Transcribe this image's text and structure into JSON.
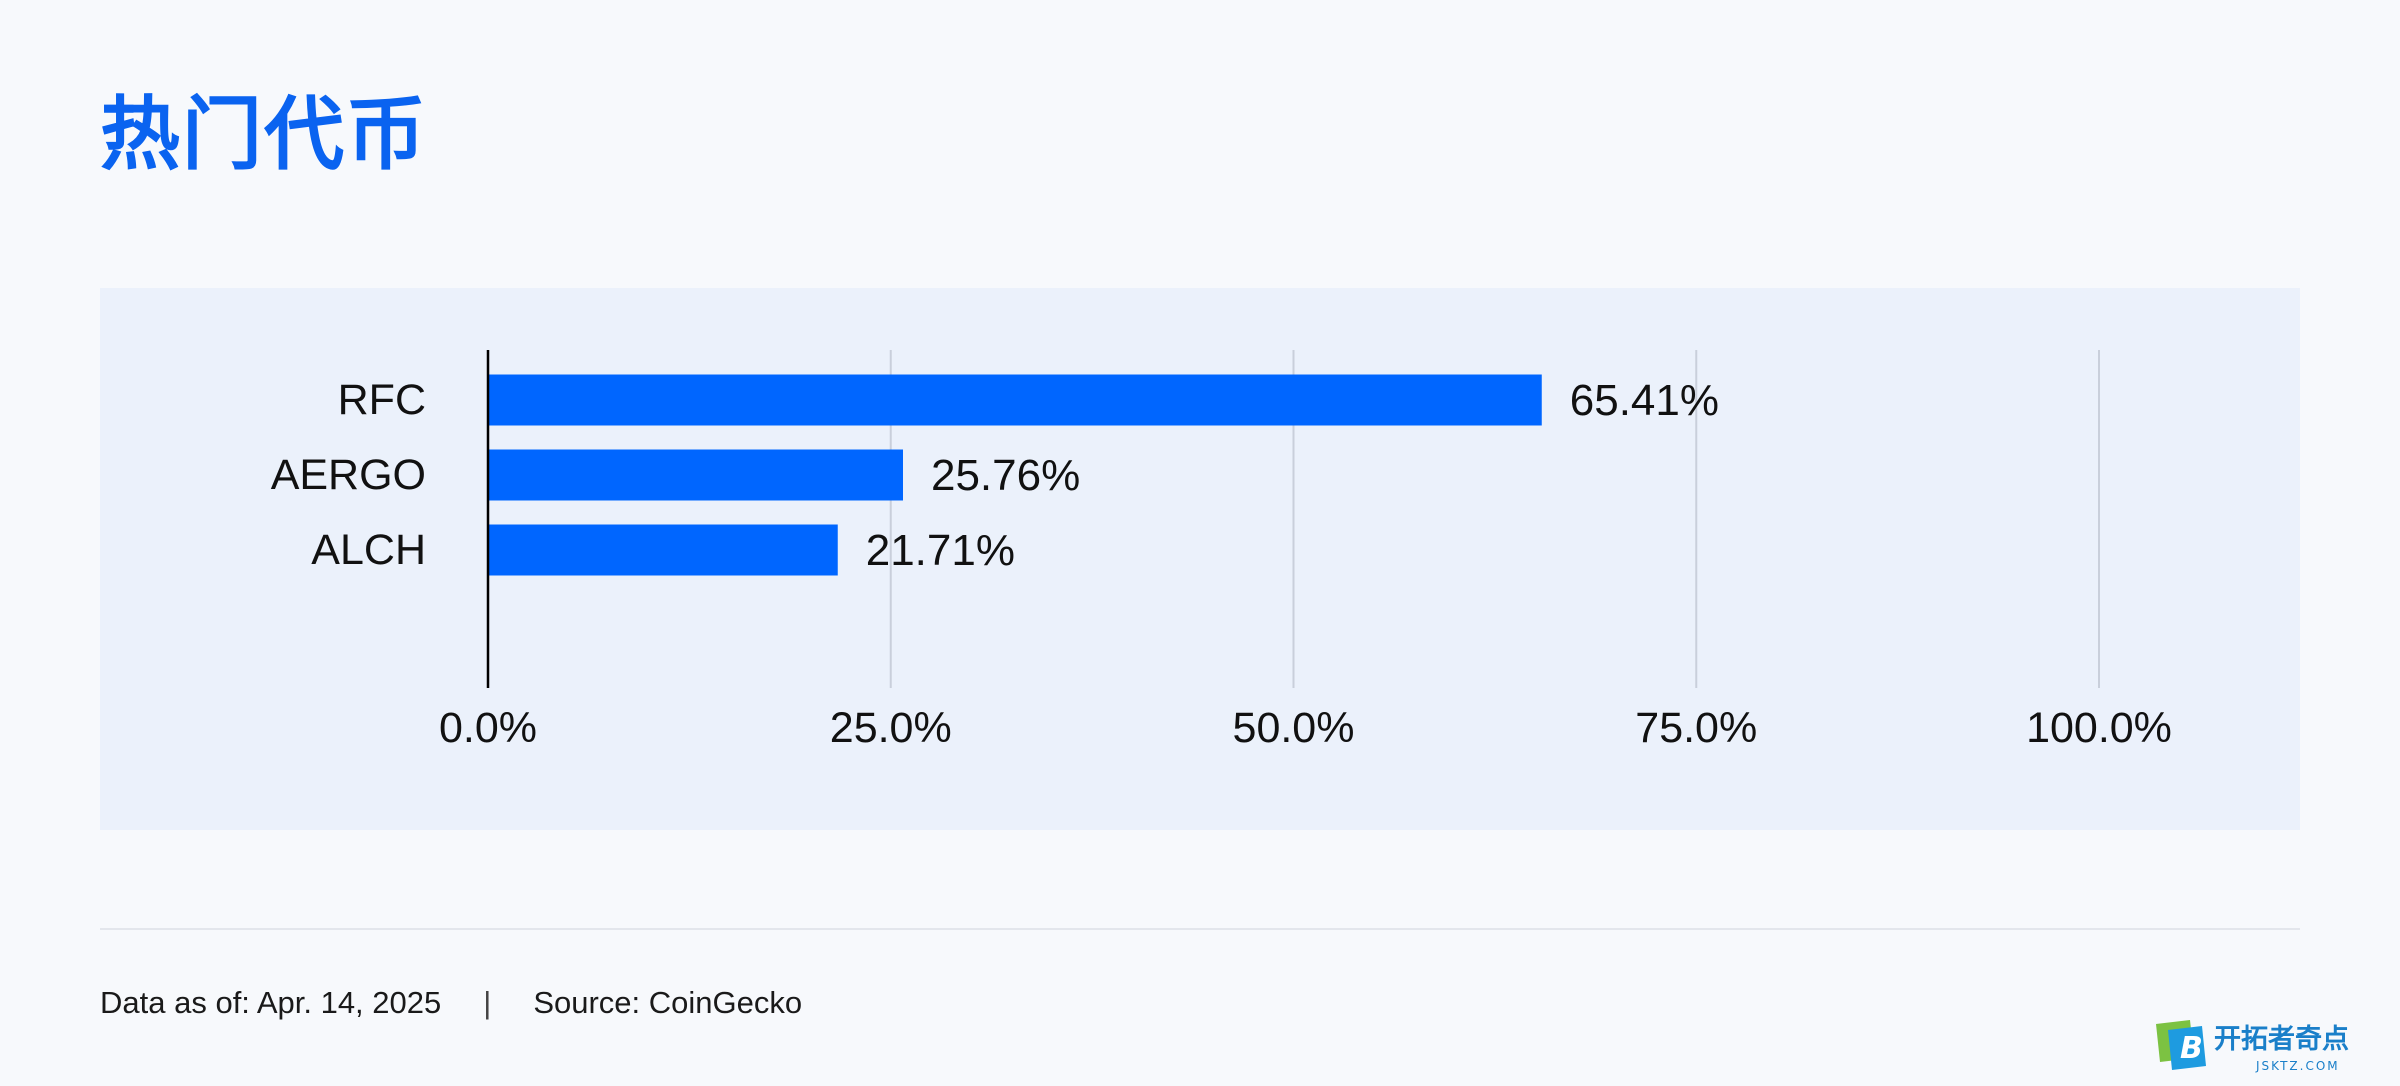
{
  "title": "热门代币",
  "chart_data": {
    "type": "bar",
    "orientation": "horizontal",
    "categories": [
      "RFC",
      "AERGO",
      "ALCH"
    ],
    "values": [
      65.41,
      25.76,
      21.71
    ],
    "value_labels": [
      "65.41%",
      "25.76%",
      "21.71%"
    ],
    "xlim": [
      0,
      100
    ],
    "x_ticks": [
      0,
      25,
      50,
      75,
      100
    ],
    "x_tick_labels": [
      "0.0%",
      "25.0%",
      "50.0%",
      "75.0%",
      "100.0%"
    ],
    "grid": "vertical",
    "colors": {
      "bar": "#0066ff",
      "grid": "#c9cfdb",
      "axis": "#000000"
    }
  },
  "footer": {
    "date_text": "Data as of: Apr. 14, 2025",
    "separator": "|",
    "source_text": "Source: CoinGecko"
  },
  "watermark": {
    "badge_letter": "B",
    "brand_text": "开拓者奇点",
    "brand_sub": "JSKTZ.COM"
  }
}
